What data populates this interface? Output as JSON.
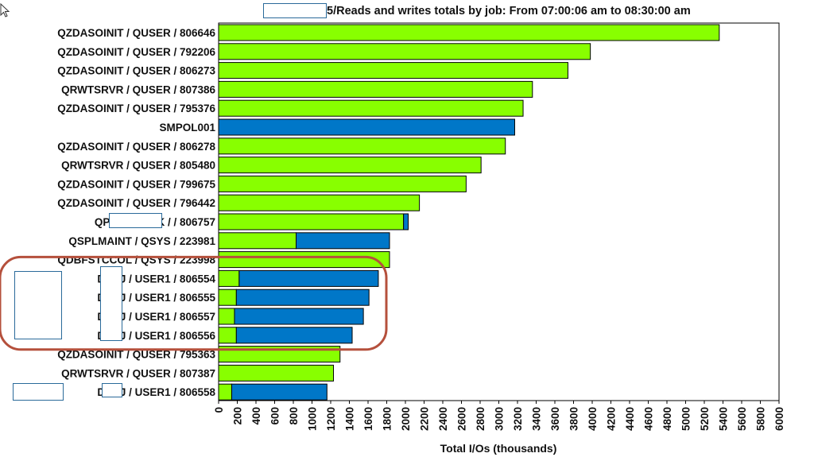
{
  "chart_data": {
    "type": "bar",
    "orientation": "horizontal",
    "stacked": true,
    "title": "5/Reads and writes totals by job: From 07:00:06 am to 08:30:00 am",
    "xlabel": "Total I/Os (thousands)",
    "ylabel": "",
    "xlim": [
      0,
      6000
    ],
    "x_ticks": [
      "0",
      "200",
      "400",
      "600",
      "800",
      "1000",
      "1200",
      "1400",
      "1600",
      "1800",
      "2000",
      "2200",
      "2400",
      "2600",
      "2800",
      "3000",
      "3200",
      "3400",
      "3600",
      "3800",
      "4000",
      "4200",
      "4400",
      "4600",
      "4800",
      "5000",
      "5200",
      "5400",
      "5600",
      "5800",
      "6000"
    ],
    "grid": false,
    "legend": "none",
    "colors": {
      "green": "#88ff00",
      "blue": "#0077c8"
    },
    "categories": [
      "QZDASOINIT / QUSER / 806646",
      "QZDASOINIT / QUSER / 792206",
      "QZDASOINIT / QUSER / 806273",
      "QRWTSRVR / QUSER / 807386",
      "QZDASOINIT / QUSER / 795376",
      "SMPOL001",
      "QZDASOINIT / QUSER / 806278",
      "QRWTSRVR / QUSER / 805480",
      "QZDASOINIT / QUSER / 799675",
      "QZDASOINIT / QUSER / 796442",
      "QPADEV003K / / 806757",
      "QSPLMAINT / QSYS / 223981",
      "QDBFSTCCOL / QSYS / 223998",
      "DRPJ / USER1 / 806554",
      "DRPJ / USER1 / 806555",
      "DRPJ / USER1 / 806557",
      "DRPJ / USER1 / 806556",
      "QZDASOINIT / QUSER / 795363",
      "QRWTSRVR / QUSER / 807387",
      "DRPJ / USER1 / 806558"
    ],
    "series": [
      {
        "color": "green",
        "values": [
          5360,
          3980,
          3740,
          3360,
          3260,
          0,
          3070,
          2810,
          2650,
          2150,
          1980,
          830,
          1830,
          220,
          190,
          170,
          190,
          1300,
          1230,
          140
        ]
      },
      {
        "color": "blue",
        "values": [
          0,
          0,
          0,
          0,
          0,
          3170,
          0,
          0,
          0,
          0,
          50,
          1000,
          0,
          1490,
          1420,
          1380,
          1240,
          0,
          0,
          1020
        ]
      }
    ],
    "annotation": {
      "shape": "rounded-rectangle",
      "color": "#b5503c",
      "rows": [
        13,
        16
      ]
    }
  }
}
